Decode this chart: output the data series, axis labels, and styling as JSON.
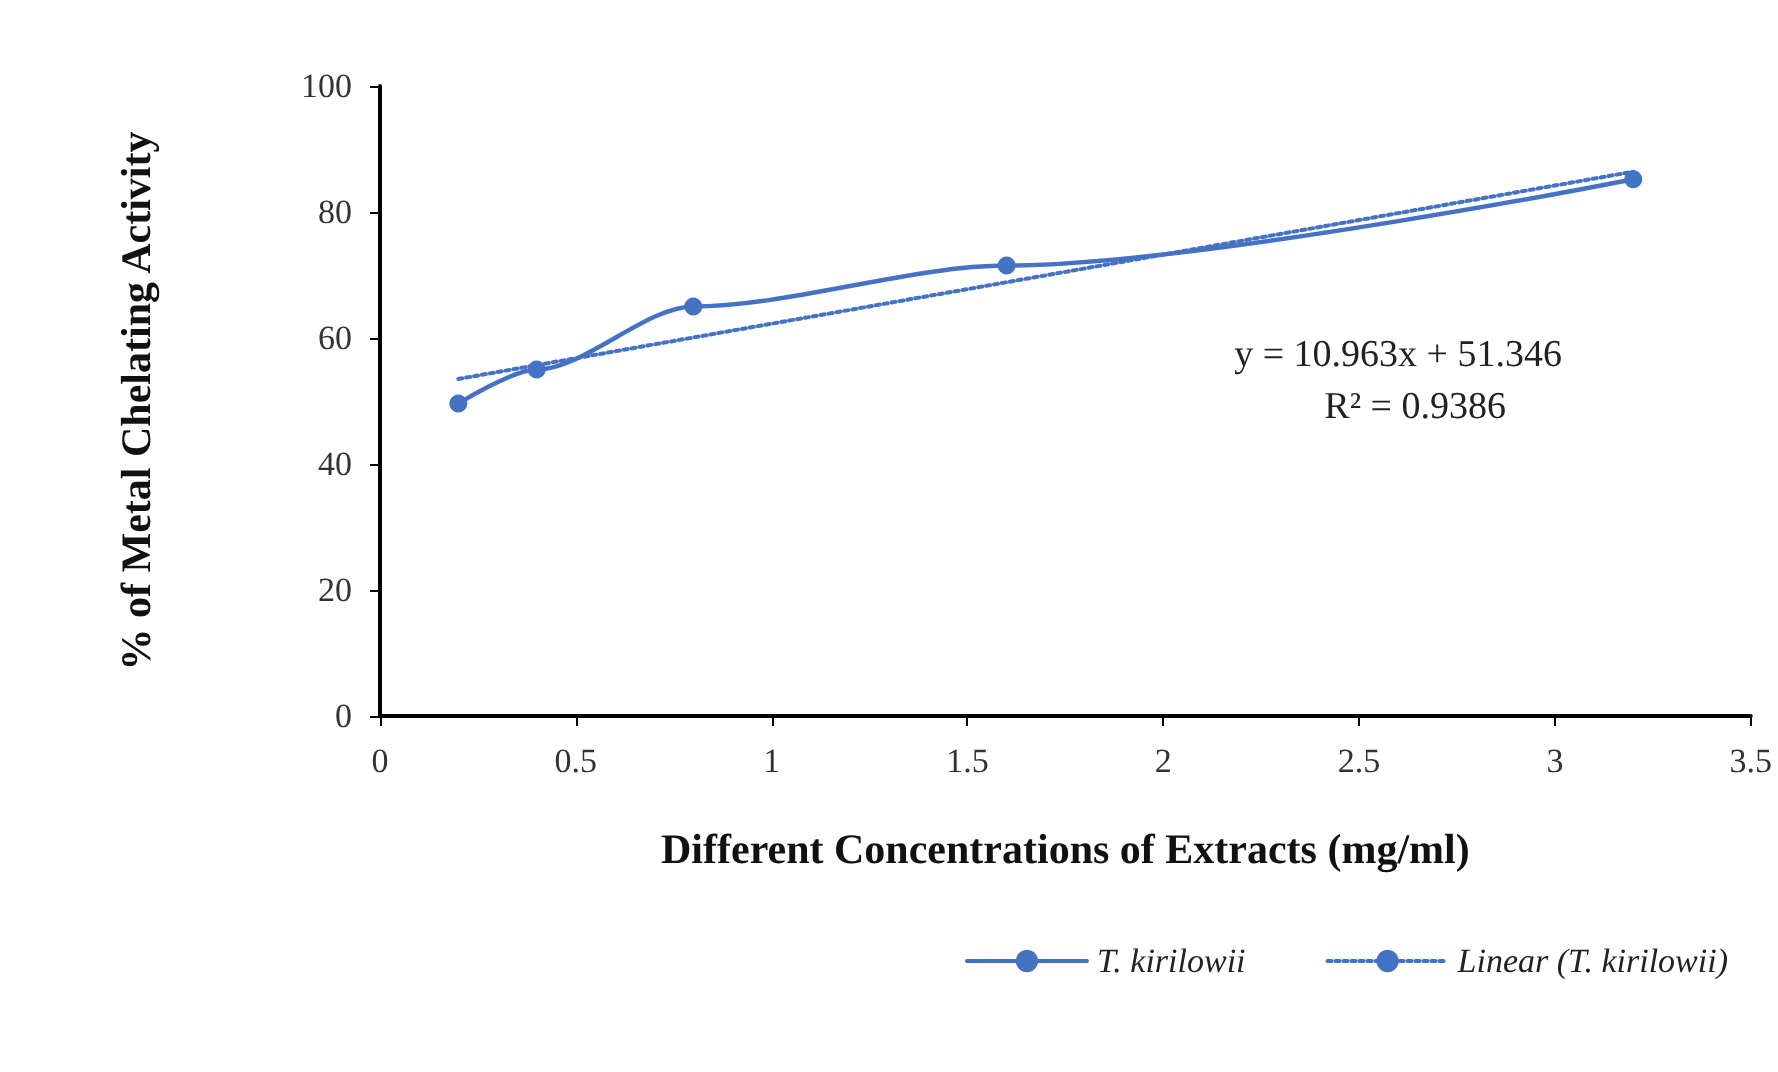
{
  "chart_data": {
    "type": "line",
    "xlabel": "Different Concentrations of Extracts (mg/ml)",
    "ylabel": "% of Metal Chelating Activity",
    "series": [
      {
        "name": "T. kirilowii",
        "color": "#4472c4",
        "x": [
          0.2,
          0.4,
          0.8,
          1.6,
          3.2
        ],
        "values": [
          49.6,
          55,
          65,
          71.5,
          85.2
        ],
        "marker": "circle",
        "line_style": "solid"
      },
      {
        "name": "Linear (T. kirilowii)",
        "color": "#4472c4",
        "x": [
          0.2,
          3.2
        ],
        "values": [
          53.5,
          86.4
        ],
        "marker": "none",
        "line_style": "dotted"
      }
    ],
    "xlim": [
      0,
      3.5
    ],
    "xticks": [
      0,
      0.5,
      1,
      1.5,
      2,
      2.5,
      3,
      3.5
    ],
    "ylim": [
      0,
      100
    ],
    "yticks": [
      0,
      20,
      40,
      60,
      80,
      100
    ],
    "annotations": [
      "y = 10.963x + 51.346",
      "R² = 0.9386"
    ],
    "grid": false,
    "legend": "bottom"
  }
}
